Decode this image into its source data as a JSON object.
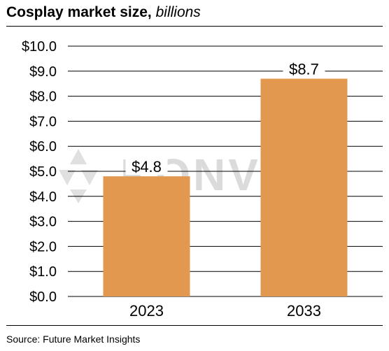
{
  "title": {
    "main": "Cosplay market size,",
    "unit": "billions"
  },
  "source": "Source: Future Market Insights",
  "watermark": {
    "text": "KONVOY",
    "color": "#9a9a9a"
  },
  "chart_data": {
    "type": "bar",
    "title": "Cosplay market size, billions",
    "xlabel": "",
    "ylabel": "",
    "categories": [
      "2023",
      "2033"
    ],
    "values": [
      4.8,
      8.7
    ],
    "data_labels": [
      "$4.8",
      "$8.7"
    ],
    "ylim": [
      0,
      10
    ],
    "yticks": [
      0,
      1,
      2,
      3,
      4,
      5,
      6,
      7,
      8,
      9,
      10
    ],
    "ytick_labels": [
      "$0.0",
      "$1.0",
      "$2.0",
      "$3.0",
      "$4.0",
      "$5.0",
      "$6.0",
      "$7.0",
      "$8.0",
      "$9.0",
      "$10.0"
    ],
    "grid": true,
    "legend": "none",
    "bar_color": "#e2984e",
    "grid_color": "#000000"
  }
}
